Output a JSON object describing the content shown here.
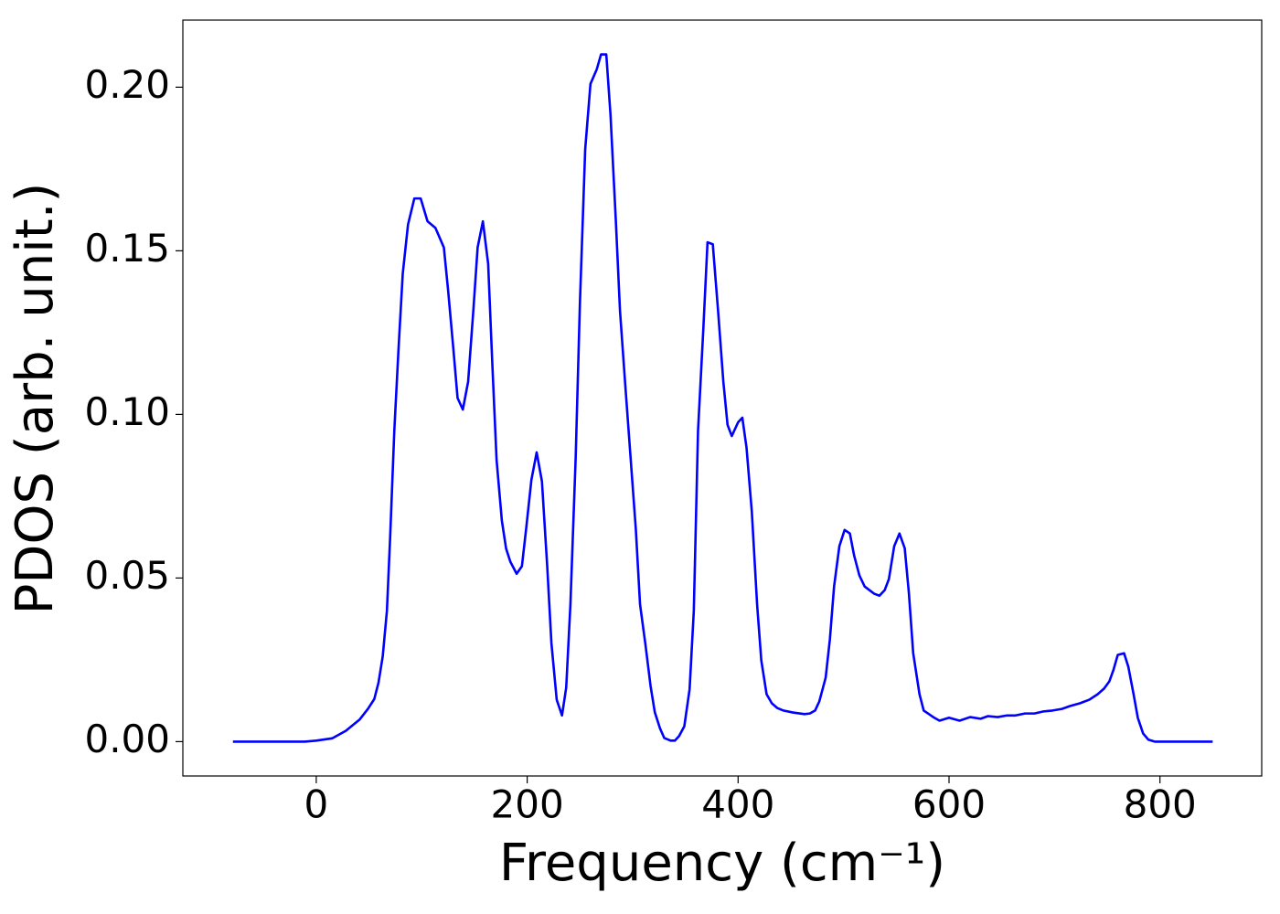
{
  "chart_data": {
    "type": "line",
    "xlabel": "Frequency (cm⁻¹)",
    "ylabel": "PDOS (arb. unit.)",
    "xlim": [
      -126.5,
      896.5
    ],
    "ylim": [
      -0.0105,
      0.2205
    ],
    "xticks": [
      0,
      200,
      400,
      600,
      800
    ],
    "yticks": [
      {
        "value": 0,
        "label": "0.00"
      },
      0.05,
      {
        "value": 0.1,
        "label": "0.10"
      },
      0.15,
      {
        "value": 0.2,
        "label": "0.20"
      }
    ],
    "grid": false,
    "series": [
      {
        "color": "#0000ff",
        "x": [
          -79,
          -11,
          0,
          15,
          28,
          41,
          49,
          55,
          59,
          63,
          67,
          70,
          74,
          78,
          82,
          87,
          93,
          99,
          105.5,
          113,
          121,
          125,
          130,
          134,
          139,
          144,
          149,
          153,
          158,
          163,
          167,
          171,
          176,
          180,
          184,
          190,
          195,
          199,
          204,
          209,
          214,
          219,
          223,
          228,
          233,
          237,
          241,
          246,
          250,
          255,
          260,
          266,
          270,
          275,
          279,
          284,
          288,
          293,
          298,
          303,
          307,
          312,
          317,
          321,
          326,
          330,
          336,
          340,
          344,
          349,
          354,
          358,
          362,
          367,
          371,
          376,
          381,
          386,
          390,
          394,
          400,
          404,
          408,
          413,
          418,
          422,
          427,
          432,
          437,
          443,
          452,
          463,
          468,
          473,
          477,
          483,
          487,
          491,
          496,
          501,
          506,
          510,
          515,
          520,
          529,
          534,
          539,
          543,
          548,
          553,
          558,
          562,
          566,
          572,
          576,
          586,
          591,
          600,
          610,
          620,
          630,
          637,
          646,
          655,
          663,
          672,
          681,
          689,
          698,
          707,
          715,
          724,
          733,
          741,
          747,
          752,
          756,
          760,
          766,
          770,
          775,
          779,
          784,
          789,
          795,
          850
        ],
        "values": [
          0,
          0,
          0.0003,
          0.001,
          0.0033,
          0.0067,
          0.01,
          0.013,
          0.018,
          0.026,
          0.04,
          0.062,
          0.095,
          0.12,
          0.143,
          0.158,
          0.166,
          0.166,
          0.159,
          0.157,
          0.151,
          0.138,
          0.12,
          0.105,
          0.1015,
          0.11,
          0.132,
          0.151,
          0.159,
          0.146,
          0.115,
          0.086,
          0.0675,
          0.059,
          0.055,
          0.0513,
          0.0536,
          0.065,
          0.08,
          0.0884,
          0.0795,
          0.0536,
          0.03,
          0.0128,
          0.008,
          0.0165,
          0.042,
          0.087,
          0.134,
          0.181,
          0.201,
          0.2055,
          0.21,
          0.21,
          0.1916,
          0.1596,
          0.1317,
          0.109,
          0.087,
          0.065,
          0.042,
          0.03,
          0.017,
          0.009,
          0.004,
          0.0011,
          0.0003,
          0.0003,
          0.0017,
          0.0047,
          0.016,
          0.04,
          0.095,
          0.126,
          0.1526,
          0.152,
          0.1317,
          0.11,
          0.0968,
          0.0934,
          0.0976,
          0.099,
          0.0898,
          0.0703,
          0.042,
          0.0248,
          0.0145,
          0.0117,
          0.0103,
          0.0095,
          0.0089,
          0.0084,
          0.0086,
          0.0095,
          0.0123,
          0.0195,
          0.0312,
          0.0474,
          0.0597,
          0.0647,
          0.0636,
          0.0569,
          0.0508,
          0.0474,
          0.0452,
          0.0446,
          0.0463,
          0.0497,
          0.0597,
          0.0636,
          0.0591,
          0.0452,
          0.0271,
          0.0145,
          0.0095,
          0.0073,
          0.0064,
          0.0073,
          0.0064,
          0.0075,
          0.007,
          0.0078,
          0.0075,
          0.008,
          0.008,
          0.0086,
          0.0086,
          0.0092,
          0.0095,
          0.01,
          0.0109,
          0.0117,
          0.0128,
          0.0145,
          0.0162,
          0.0184,
          0.022,
          0.0265,
          0.027,
          0.0229,
          0.0145,
          0.0073,
          0.0025,
          0.0006,
          0,
          0
        ]
      }
    ]
  }
}
